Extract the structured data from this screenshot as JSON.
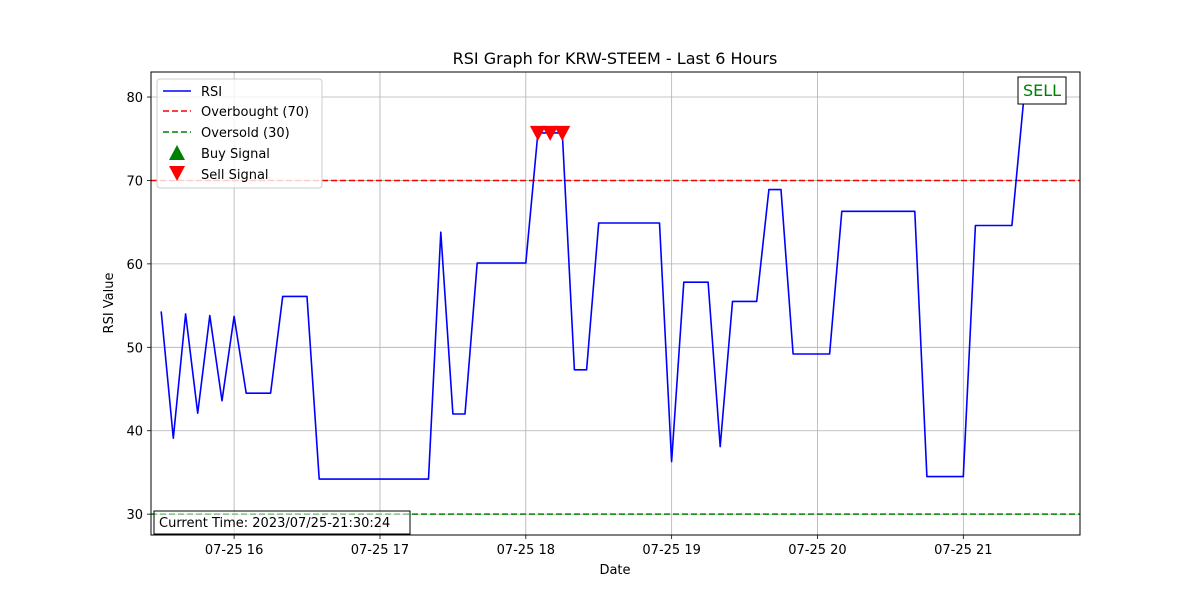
{
  "chart_data": {
    "type": "line",
    "title": "RSI Graph for KRW-STEEM - Last 6 Hours",
    "xlabel": "Date",
    "ylabel": "RSI Value",
    "x_ticks": [
      "07-25 16",
      "07-25 17",
      "07-25 18",
      "07-25 19",
      "07-25 20",
      "07-25 21"
    ],
    "y_ticks": [
      30,
      40,
      50,
      60,
      70,
      80
    ],
    "xlim": [
      15.43,
      21.8
    ],
    "ylim": [
      27.5,
      83
    ],
    "grid": true,
    "legend_placement": "upper-left",
    "series": [
      {
        "name": "RSI",
        "color": "#0000ff",
        "x": [
          15.5,
          15.583,
          15.667,
          15.75,
          15.833,
          15.917,
          16.0,
          16.083,
          16.25,
          16.333,
          16.5,
          16.583,
          17.333,
          17.417,
          17.5,
          17.583,
          17.667,
          18.0,
          18.083,
          18.167,
          18.25,
          18.333,
          18.417,
          18.5,
          18.917,
          19.0,
          19.083,
          19.25,
          19.333,
          19.417,
          19.583,
          19.667,
          19.75,
          19.833,
          20.083,
          20.167,
          20.667,
          20.75,
          21.0,
          21.083,
          21.333,
          21.417
        ],
        "y": [
          54.3,
          39.1,
          54.0,
          42.1,
          53.8,
          43.6,
          53.7,
          44.5,
          44.5,
          56.1,
          56.1,
          34.2,
          34.2,
          63.8,
          42.0,
          42.0,
          60.1,
          60.1,
          75.7,
          75.7,
          75.7,
          47.3,
          47.3,
          64.9,
          64.9,
          36.3,
          57.8,
          57.8,
          38.1,
          55.5,
          55.5,
          68.9,
          68.9,
          49.2,
          49.2,
          66.3,
          66.3,
          34.5,
          34.5,
          64.6,
          64.6,
          80.2
        ]
      },
      {
        "name": "Overbought (70)",
        "color": "#ff0000",
        "style": "dashed",
        "y_constant": 70
      },
      {
        "name": "Oversold (30)",
        "color": "#008000",
        "style": "dashed",
        "y_constant": 30
      },
      {
        "name": "Buy Signal",
        "color": "#008000",
        "marker": "triangle-up",
        "x": [],
        "y": []
      },
      {
        "name": "Sell Signal",
        "color": "#ff0000",
        "marker": "triangle-down",
        "x": [
          18.083,
          18.167,
          18.25
        ],
        "y": [
          75.7,
          75.7,
          75.7
        ]
      }
    ],
    "annotations": {
      "signal_box": {
        "text": "SELL",
        "color": "#008000"
      },
      "time_box": {
        "text": "Current Time: 2023/07/25-21:30:24"
      }
    }
  }
}
